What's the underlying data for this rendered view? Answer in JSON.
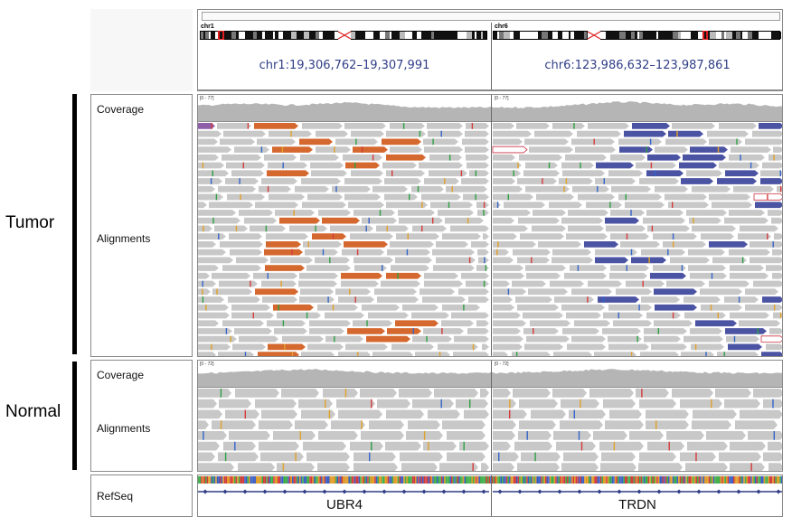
{
  "groups": {
    "tumor": "Tumor",
    "normal": "Normal"
  },
  "tracks": {
    "tumor_coverage": "Coverage",
    "tumor_alignments": "Alignments",
    "normal_coverage": "Coverage",
    "normal_alignments": "Alignments",
    "refseq": "RefSeq"
  },
  "loci": [
    {
      "chromosome": "chr1",
      "locus": "chr1:19,306,762–19,307,991",
      "gene": "UBR4"
    },
    {
      "chromosome": "chr6",
      "locus": "chr6:123,986,632–123,987,861",
      "gene": "TRDN"
    }
  ],
  "coverage_ranges": {
    "tumor": [
      "[0 - 77]",
      "[0 - 77]"
    ],
    "normal": [
      "[0 - 72]",
      "[0 - 72]"
    ]
  },
  "colors": {
    "read_gray": "#c8c8c8",
    "orange_read": "#d4682f",
    "blue_read": "#4b53a3",
    "purple_read": "#8e5ea8",
    "red_read": "#b22222",
    "coverage_gray": "#b5b5b5",
    "locus_text": "#2f3d86"
  }
}
